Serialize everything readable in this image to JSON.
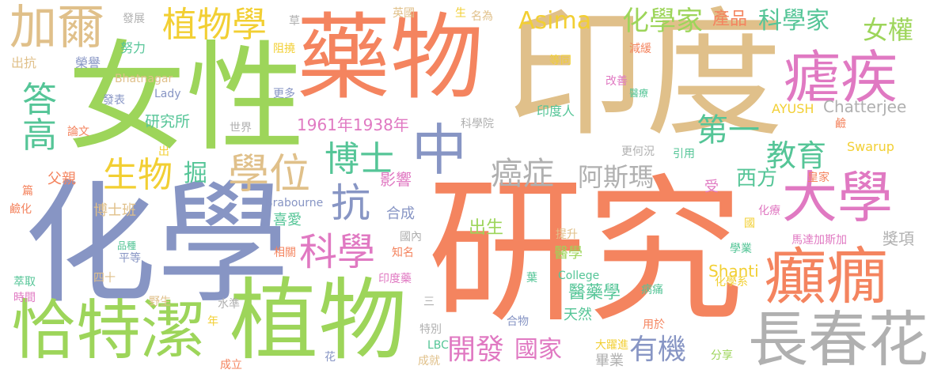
{
  "palette": {
    "orange": "#f4845f",
    "tan": "#e0c08a",
    "green": "#9dd55a",
    "blue": "#8795c4",
    "pink": "#e079c2",
    "yellow": "#f2cf33",
    "gray": "#b0b0b0",
    "teal": "#55c597"
  },
  "words": [
    {
      "text": "研究",
      "color": "orange"
    },
    {
      "text": "印度",
      "color": "tan"
    },
    {
      "text": "化學",
      "color": "blue"
    },
    {
      "text": "女性",
      "color": "green"
    },
    {
      "text": "藥物",
      "color": "orange"
    },
    {
      "text": "植物",
      "color": "green"
    },
    {
      "text": "恰特潔",
      "color": "green"
    },
    {
      "text": "長春花",
      "color": "gray"
    },
    {
      "text": "大學",
      "color": "pink"
    },
    {
      "text": "癲癇",
      "color": "orange"
    },
    {
      "text": "瘧疾",
      "color": "pink"
    },
    {
      "text": "加爾",
      "color": "tan"
    },
    {
      "text": "植物學",
      "color": "yellow"
    },
    {
      "text": "化學家",
      "color": "green"
    },
    {
      "text": "科學家",
      "color": "teal"
    },
    {
      "text": "女權",
      "color": "green"
    },
    {
      "text": "Asima",
      "color": "yellow"
    },
    {
      "text": "產品",
      "color": "orange"
    },
    {
      "text": "中",
      "color": "blue"
    },
    {
      "text": "博士",
      "color": "teal"
    },
    {
      "text": "抗",
      "color": "blue"
    },
    {
      "text": "學位",
      "color": "tan"
    },
    {
      "text": "生物",
      "color": "yellow"
    },
    {
      "text": "掘",
      "color": "teal"
    },
    {
      "text": "科學",
      "color": "pink"
    },
    {
      "text": "答",
      "color": "teal"
    },
    {
      "text": "高",
      "color": "teal"
    },
    {
      "text": "第一",
      "color": "teal"
    },
    {
      "text": "教育",
      "color": "teal"
    },
    {
      "text": "癌症",
      "color": "gray"
    },
    {
      "text": "阿斯瑪",
      "color": "gray"
    },
    {
      "text": "西方",
      "color": "teal"
    },
    {
      "text": "開發",
      "color": "pink"
    },
    {
      "text": "國家",
      "color": "pink"
    },
    {
      "text": "有機",
      "color": "blue"
    },
    {
      "text": "Chatterjee",
      "color": "gray"
    },
    {
      "text": "Swarup",
      "color": "yellow"
    },
    {
      "text": "AYUSH",
      "color": "yellow"
    },
    {
      "text": "1961年1938年",
      "color": "pink"
    },
    {
      "text": "研究所",
      "color": "teal"
    },
    {
      "text": "世界",
      "color": "gray"
    },
    {
      "text": "科學院",
      "color": "gray"
    },
    {
      "text": "印度人",
      "color": "teal"
    },
    {
      "text": "更何況",
      "color": "gray"
    },
    {
      "text": "引用",
      "color": "teal"
    },
    {
      "text": "皇家",
      "color": "orange"
    },
    {
      "text": "受",
      "color": "pink"
    },
    {
      "text": "影響",
      "color": "pink"
    },
    {
      "text": "合成",
      "color": "blue"
    },
    {
      "text": "喜愛",
      "color": "teal"
    },
    {
      "text": "Brabourne",
      "color": "blue"
    },
    {
      "text": "博士班",
      "color": "tan"
    },
    {
      "text": "父親",
      "color": "orange"
    },
    {
      "text": "出生",
      "color": "green"
    },
    {
      "text": "Shanti",
      "color": "yellow"
    },
    {
      "text": "醫學",
      "color": "green"
    },
    {
      "text": "醫藥學",
      "color": "teal"
    },
    {
      "text": "天然",
      "color": "teal"
    },
    {
      "text": "畢業",
      "color": "gray"
    },
    {
      "text": "獎項",
      "color": "gray"
    },
    {
      "text": "馬達加斯加",
      "color": "pink"
    },
    {
      "text": "學業",
      "color": "teal"
    },
    {
      "text": "化學系",
      "color": "yellow"
    },
    {
      "text": "病痛",
      "color": "teal"
    },
    {
      "text": "用於",
      "color": "orange"
    },
    {
      "text": "大躍進",
      "color": "yellow"
    },
    {
      "text": "分享",
      "color": "green"
    },
    {
      "text": "合物",
      "color": "blue"
    },
    {
      "text": "College",
      "color": "teal"
    },
    {
      "text": "LBC",
      "color": "teal"
    },
    {
      "text": "特別",
      "color": "gray"
    },
    {
      "text": "成就",
      "color": "tan"
    },
    {
      "text": "花",
      "color": "blue"
    },
    {
      "text": "成立",
      "color": "orange"
    },
    {
      "text": "年",
      "color": "yellow"
    },
    {
      "text": "野生",
      "color": "tan"
    },
    {
      "text": "水準",
      "color": "gray"
    },
    {
      "text": "四十",
      "color": "tan"
    },
    {
      "text": "平等",
      "color": "blue"
    },
    {
      "text": "品種",
      "color": "teal"
    },
    {
      "text": "萃取",
      "color": "teal"
    },
    {
      "text": "時間",
      "color": "pink"
    },
    {
      "text": "鹼化",
      "color": "orange"
    },
    {
      "text": "篇",
      "color": "orange"
    },
    {
      "text": "出",
      "color": "yellow"
    },
    {
      "text": "論文",
      "color": "orange"
    },
    {
      "text": "發表",
      "color": "blue"
    },
    {
      "text": "Lady",
      "color": "blue"
    },
    {
      "text": "更多",
      "color": "blue"
    },
    {
      "text": "Bhatnagar",
      "color": "tan"
    },
    {
      "text": "榮譽",
      "color": "blue"
    },
    {
      "text": "出抗",
      "color": "tan"
    },
    {
      "text": "努力",
      "color": "teal"
    },
    {
      "text": "發展",
      "color": "gray"
    },
    {
      "text": "草",
      "color": "gray"
    },
    {
      "text": "阻撓",
      "color": "yellow"
    },
    {
      "text": "英國",
      "color": "tan"
    },
    {
      "text": "生",
      "color": "yellow"
    },
    {
      "text": "名為",
      "color": "tan"
    },
    {
      "text": "等同",
      "color": "yellow"
    },
    {
      "text": "減緩",
      "color": "orange"
    },
    {
      "text": "改善",
      "color": "pink"
    },
    {
      "text": "醫療",
      "color": "teal"
    },
    {
      "text": "鹼",
      "color": "orange"
    },
    {
      "text": "化療",
      "color": "pink"
    },
    {
      "text": "國",
      "color": "yellow"
    },
    {
      "text": "提升",
      "color": "tan"
    },
    {
      "text": "國內",
      "color": "gray"
    },
    {
      "text": "知名",
      "color": "orange"
    },
    {
      "text": "相關",
      "color": "orange"
    },
    {
      "text": "印度藥",
      "color": "pink"
    },
    {
      "text": "三",
      "color": "gray"
    },
    {
      "text": "葉",
      "color": "teal"
    }
  ]
}
